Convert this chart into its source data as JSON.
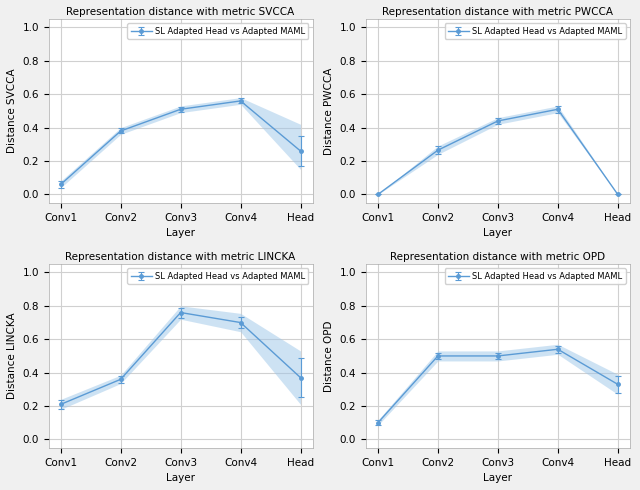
{
  "layers": [
    "Conv1",
    "Conv2",
    "Conv3",
    "Conv4",
    "Head"
  ],
  "legend_label": "SL Adapted Head vs Adapted MAML",
  "line_color": "#5b9bd5",
  "fill_color": "#9dc6e8",
  "fig_facecolor": "#f0f0f0",
  "ax_facecolor": "#ffffff",
  "plots": [
    {
      "title": "Representation distance with metric SVCCA",
      "ylabel": "Distance SVCCA",
      "ylim": [
        -0.05,
        1.05
      ],
      "yticks": [
        0.0,
        0.2,
        0.4,
        0.6,
        0.8,
        1.0
      ],
      "mean": [
        0.06,
        0.38,
        0.51,
        0.56,
        0.26
      ],
      "yerr_low": [
        0.02,
        0.015,
        0.015,
        0.015,
        0.09
      ],
      "yerr_high": [
        0.02,
        0.015,
        0.015,
        0.015,
        0.09
      ],
      "fill_low": [
        0.04,
        0.36,
        0.49,
        0.54,
        0.15
      ],
      "fill_high": [
        0.08,
        0.4,
        0.53,
        0.58,
        0.42
      ]
    },
    {
      "title": "Representation distance with metric PWCCA",
      "ylabel": "Distance PWCCA",
      "ylim": [
        -0.05,
        1.05
      ],
      "yticks": [
        0.0,
        0.2,
        0.4,
        0.6,
        0.8,
        1.0
      ],
      "mean": [
        0.0,
        0.265,
        0.44,
        0.51,
        0.0
      ],
      "yerr_low": [
        0.0,
        0.025,
        0.02,
        0.02,
        0.0
      ],
      "yerr_high": [
        0.0,
        0.025,
        0.02,
        0.02,
        0.0
      ],
      "fill_low": [
        0.0,
        0.24,
        0.42,
        0.49,
        0.0
      ],
      "fill_high": [
        0.0,
        0.29,
        0.46,
        0.53,
        0.0
      ]
    },
    {
      "title": "Representation distance with metric LINCKA",
      "ylabel": "Distance LINCKA",
      "ylim": [
        -0.05,
        1.05
      ],
      "yticks": [
        0.0,
        0.2,
        0.4,
        0.6,
        0.8,
        1.0
      ],
      "mean": [
        0.21,
        0.36,
        0.76,
        0.7,
        0.37
      ],
      "yerr_low": [
        0.025,
        0.02,
        0.03,
        0.035,
        0.115
      ],
      "yerr_high": [
        0.025,
        0.02,
        0.03,
        0.035,
        0.115
      ],
      "fill_low": [
        0.18,
        0.335,
        0.72,
        0.645,
        0.21
      ],
      "fill_high": [
        0.24,
        0.385,
        0.8,
        0.755,
        0.53
      ]
    },
    {
      "title": "Representation distance with metric OPD",
      "ylabel": "Distance OPD",
      "ylim": [
        -0.05,
        1.05
      ],
      "yticks": [
        0.0,
        0.2,
        0.4,
        0.6,
        0.8,
        1.0
      ],
      "mean": [
        0.1,
        0.5,
        0.5,
        0.54,
        0.33
      ],
      "yerr_low": [
        0.015,
        0.02,
        0.02,
        0.02,
        0.05
      ],
      "yerr_high": [
        0.015,
        0.02,
        0.02,
        0.02,
        0.05
      ],
      "fill_low": [
        0.085,
        0.47,
        0.47,
        0.51,
        0.27
      ],
      "fill_high": [
        0.115,
        0.53,
        0.53,
        0.57,
        0.39
      ]
    }
  ]
}
